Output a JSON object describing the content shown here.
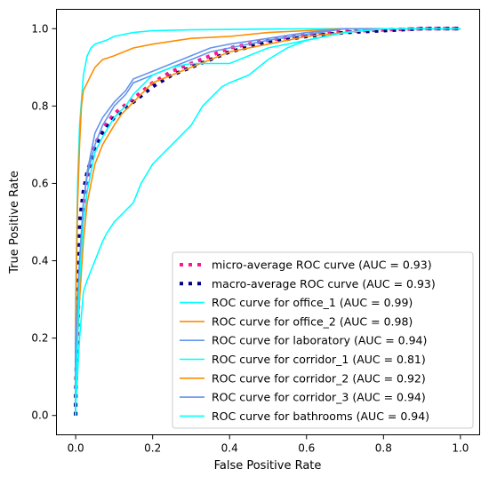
{
  "chart_data": {
    "type": "line",
    "title": "",
    "xlabel": "False Positive Rate",
    "ylabel": "True Positive Rate",
    "xlim": [
      -0.05,
      1.05
    ],
    "ylim": [
      -0.05,
      1.05
    ],
    "xticks": [
      "0.0",
      "0.2",
      "0.4",
      "0.6",
      "0.8",
      "1.0"
    ],
    "yticks": [
      "0.0",
      "0.2",
      "0.4",
      "0.6",
      "0.8",
      "1.0"
    ],
    "legend_position": "lower-right",
    "grid": false,
    "series": [
      {
        "name": "micro-average ROC curve (AUC = 0.93)",
        "color": "#ff1493",
        "style": "dotted-thick",
        "points": [
          [
            0,
            0
          ],
          [
            0,
            0.04
          ],
          [
            0.005,
            0.2
          ],
          [
            0.01,
            0.4
          ],
          [
            0.015,
            0.5
          ],
          [
            0.02,
            0.55
          ],
          [
            0.03,
            0.6
          ],
          [
            0.04,
            0.65
          ],
          [
            0.05,
            0.7
          ],
          [
            0.07,
            0.74
          ],
          [
            0.1,
            0.78
          ],
          [
            0.15,
            0.82
          ],
          [
            0.2,
            0.86
          ],
          [
            0.25,
            0.89
          ],
          [
            0.3,
            0.91
          ],
          [
            0.35,
            0.93
          ],
          [
            0.4,
            0.95
          ],
          [
            0.5,
            0.97
          ],
          [
            0.6,
            0.985
          ],
          [
            0.7,
            0.993
          ],
          [
            0.8,
            0.997
          ],
          [
            0.9,
            1.0
          ],
          [
            1.0,
            1.0
          ]
        ]
      },
      {
        "name": "macro-average ROC curve (AUC = 0.93)",
        "color": "#000080",
        "style": "dotted-thick",
        "points": [
          [
            0,
            0
          ],
          [
            0,
            0.03
          ],
          [
            0.005,
            0.3
          ],
          [
            0.01,
            0.5
          ],
          [
            0.02,
            0.58
          ],
          [
            0.03,
            0.63
          ],
          [
            0.05,
            0.69
          ],
          [
            0.07,
            0.73
          ],
          [
            0.1,
            0.77
          ],
          [
            0.15,
            0.81
          ],
          [
            0.2,
            0.85
          ],
          [
            0.25,
            0.88
          ],
          [
            0.3,
            0.9
          ],
          [
            0.35,
            0.92
          ],
          [
            0.4,
            0.94
          ],
          [
            0.5,
            0.965
          ],
          [
            0.6,
            0.98
          ],
          [
            0.7,
            0.99
          ],
          [
            0.8,
            0.995
          ],
          [
            0.9,
            1.0
          ],
          [
            1.0,
            1.0
          ]
        ]
      },
      {
        "name": "ROC curve for office_1 (AUC = 0.99)",
        "color": "#00ffff",
        "style": "solid",
        "points": [
          [
            0,
            0
          ],
          [
            0,
            0.3
          ],
          [
            0.005,
            0.6
          ],
          [
            0.01,
            0.75
          ],
          [
            0.02,
            0.88
          ],
          [
            0.03,
            0.93
          ],
          [
            0.04,
            0.95
          ],
          [
            0.05,
            0.96
          ],
          [
            0.08,
            0.97
          ],
          [
            0.1,
            0.98
          ],
          [
            0.15,
            0.99
          ],
          [
            0.2,
            0.995
          ],
          [
            0.3,
            0.997
          ],
          [
            0.5,
            0.999
          ],
          [
            0.7,
            1.0
          ],
          [
            1.0,
            1.0
          ]
        ]
      },
      {
        "name": "ROC curve for office_2 (AUC = 0.98)",
        "color": "#ff8c00",
        "style": "solid",
        "points": [
          [
            0,
            0
          ],
          [
            0,
            0.25
          ],
          [
            0.005,
            0.55
          ],
          [
            0.01,
            0.7
          ],
          [
            0.015,
            0.8
          ],
          [
            0.02,
            0.84
          ],
          [
            0.03,
            0.86
          ],
          [
            0.04,
            0.88
          ],
          [
            0.05,
            0.9
          ],
          [
            0.07,
            0.92
          ],
          [
            0.1,
            0.93
          ],
          [
            0.15,
            0.95
          ],
          [
            0.2,
            0.96
          ],
          [
            0.3,
            0.975
          ],
          [
            0.4,
            0.98
          ],
          [
            0.5,
            0.99
          ],
          [
            0.6,
            0.995
          ],
          [
            0.7,
            1.0
          ],
          [
            1.0,
            1.0
          ]
        ]
      },
      {
        "name": "ROC curve for laboratory (AUC = 0.94)",
        "color": "#6495ed",
        "style": "solid",
        "points": [
          [
            0,
            0
          ],
          [
            0,
            0.2
          ],
          [
            0.01,
            0.4
          ],
          [
            0.02,
            0.55
          ],
          [
            0.03,
            0.63
          ],
          [
            0.04,
            0.68
          ],
          [
            0.05,
            0.73
          ],
          [
            0.07,
            0.77
          ],
          [
            0.1,
            0.81
          ],
          [
            0.13,
            0.84
          ],
          [
            0.15,
            0.87
          ],
          [
            0.2,
            0.89
          ],
          [
            0.25,
            0.91
          ],
          [
            0.3,
            0.93
          ],
          [
            0.35,
            0.95
          ],
          [
            0.4,
            0.96
          ],
          [
            0.5,
            0.975
          ],
          [
            0.6,
            0.99
          ],
          [
            0.7,
            1.0
          ],
          [
            1.0,
            1.0
          ]
        ]
      },
      {
        "name": "ROC curve for corridor_1 (AUC = 0.81)",
        "color": "#00ffff",
        "style": "solid",
        "points": [
          [
            0,
            0
          ],
          [
            0,
            0.02
          ],
          [
            0.01,
            0.2
          ],
          [
            0.02,
            0.32
          ],
          [
            0.03,
            0.35
          ],
          [
            0.05,
            0.4
          ],
          [
            0.07,
            0.45
          ],
          [
            0.08,
            0.47
          ],
          [
            0.1,
            0.5
          ],
          [
            0.13,
            0.53
          ],
          [
            0.15,
            0.55
          ],
          [
            0.17,
            0.6
          ],
          [
            0.2,
            0.65
          ],
          [
            0.22,
            0.67
          ],
          [
            0.25,
            0.7
          ],
          [
            0.28,
            0.73
          ],
          [
            0.3,
            0.75
          ],
          [
            0.33,
            0.8
          ],
          [
            0.35,
            0.82
          ],
          [
            0.38,
            0.85
          ],
          [
            0.4,
            0.86
          ],
          [
            0.45,
            0.88
          ],
          [
            0.5,
            0.92
          ],
          [
            0.55,
            0.95
          ],
          [
            0.6,
            0.97
          ],
          [
            0.65,
            0.98
          ],
          [
            0.7,
            0.99
          ],
          [
            0.8,
            1.0
          ],
          [
            1.0,
            1.0
          ]
        ]
      },
      {
        "name": "ROC curve for corridor_2 (AUC = 0.92)",
        "color": "#ff8c00",
        "style": "solid",
        "points": [
          [
            0,
            0
          ],
          [
            0,
            0.1
          ],
          [
            0.01,
            0.3
          ],
          [
            0.02,
            0.45
          ],
          [
            0.03,
            0.55
          ],
          [
            0.04,
            0.6
          ],
          [
            0.05,
            0.65
          ],
          [
            0.07,
            0.7
          ],
          [
            0.1,
            0.75
          ],
          [
            0.12,
            0.78
          ],
          [
            0.15,
            0.81
          ],
          [
            0.18,
            0.84
          ],
          [
            0.2,
            0.86
          ],
          [
            0.25,
            0.88
          ],
          [
            0.3,
            0.9
          ],
          [
            0.35,
            0.92
          ],
          [
            0.4,
            0.94
          ],
          [
            0.45,
            0.95
          ],
          [
            0.5,
            0.96
          ],
          [
            0.6,
            0.98
          ],
          [
            0.7,
            0.99
          ],
          [
            0.8,
            1.0
          ],
          [
            1.0,
            1.0
          ]
        ]
      },
      {
        "name": "ROC curve for corridor_3 (AUC = 0.94)",
        "color": "#6495ed",
        "style": "solid",
        "points": [
          [
            0,
            0
          ],
          [
            0,
            0.15
          ],
          [
            0.01,
            0.4
          ],
          [
            0.02,
            0.55
          ],
          [
            0.03,
            0.62
          ],
          [
            0.05,
            0.7
          ],
          [
            0.07,
            0.75
          ],
          [
            0.1,
            0.8
          ],
          [
            0.13,
            0.83
          ],
          [
            0.15,
            0.86
          ],
          [
            0.2,
            0.88
          ],
          [
            0.25,
            0.9
          ],
          [
            0.3,
            0.92
          ],
          [
            0.35,
            0.94
          ],
          [
            0.4,
            0.95
          ],
          [
            0.5,
            0.97
          ],
          [
            0.6,
            0.985
          ],
          [
            0.7,
            1.0
          ],
          [
            1.0,
            1.0
          ]
        ]
      },
      {
        "name": "ROC curve for bathrooms (AUC = 0.94)",
        "color": "#00ffff",
        "style": "solid",
        "points": [
          [
            0,
            0
          ],
          [
            0,
            0.05
          ],
          [
            0.01,
            0.35
          ],
          [
            0.02,
            0.5
          ],
          [
            0.03,
            0.58
          ],
          [
            0.04,
            0.63
          ],
          [
            0.05,
            0.68
          ],
          [
            0.07,
            0.72
          ],
          [
            0.1,
            0.77
          ],
          [
            0.13,
            0.8
          ],
          [
            0.15,
            0.83
          ],
          [
            0.18,
            0.86
          ],
          [
            0.2,
            0.88
          ],
          [
            0.25,
            0.9
          ],
          [
            0.3,
            0.91
          ],
          [
            0.4,
            0.91
          ],
          [
            0.45,
            0.93
          ],
          [
            0.5,
            0.95
          ],
          [
            0.6,
            0.97
          ],
          [
            0.7,
            0.99
          ],
          [
            0.8,
            1.0
          ],
          [
            1.0,
            1.0
          ]
        ]
      }
    ]
  }
}
